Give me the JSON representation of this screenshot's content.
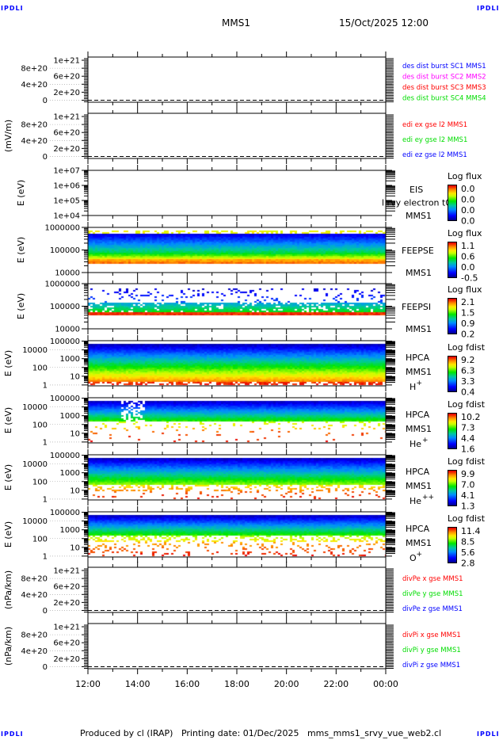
{
  "corners": [
    "IPDLI",
    "IPDLI",
    "IPDLI",
    "IPDLI"
  ],
  "header": {
    "title": "MMS1",
    "date": "15/Oct/2025 12:00"
  },
  "footer": "Produced by cl (IRAP)   Printing date: 01/Dec/2025   mms_mms1_srvy_vue_web2.cl",
  "chart_data": {
    "type": "heatmap",
    "xlabel": "",
    "x_ticks": [
      "12:00",
      "14:00",
      "16:00",
      "18:00",
      "20:00",
      "22:00",
      "00:00"
    ],
    "panels": [
      {
        "id": "des-dist-burst",
        "type": "line",
        "ylabel": "",
        "scale": "linear",
        "ylim": [
          -5e+19,
          1.08e+21
        ],
        "ticks": [
          {
            "v": 1e+21,
            "label": "1e+21"
          },
          {
            "v": 8e+20,
            "label": "8e+20"
          },
          {
            "v": 6e+20,
            "label": "6e+20"
          },
          {
            "v": 4e+20,
            "label": "4e+20"
          },
          {
            "v": 2e+20,
            "label": "2e+20"
          },
          {
            "v": 0,
            "label": "0"
          }
        ],
        "zero_line": true,
        "legend": [
          {
            "text": "des dist burst SC1 MMS1",
            "color": "#0000ff"
          },
          {
            "text": "des dist burst SC2 MMS2",
            "color": "#ff00ff"
          },
          {
            "text": "des dist burst SC3 MMS3",
            "color": "#ff0000"
          },
          {
            "text": "des dist burst SC4 MMS4",
            "color": "#00dd00"
          }
        ]
      },
      {
        "id": "edi-e-gse",
        "type": "line",
        "ylabel": "(mV/m)",
        "scale": "linear",
        "ylim": [
          -5e+19,
          1.08e+21
        ],
        "ticks": [
          {
            "v": 1e+21,
            "label": "1e+21"
          },
          {
            "v": 8e+20,
            "label": "8e+20"
          },
          {
            "v": 6e+20,
            "label": "6e+20"
          },
          {
            "v": 4e+20,
            "label": "4e+20"
          },
          {
            "v": 2e+20,
            "label": "2e+20"
          },
          {
            "v": 0,
            "label": "0"
          }
        ],
        "zero_line": true,
        "legend": [
          {
            "text": "edi ex gse l2 MMS1",
            "color": "#ff0000"
          },
          {
            "text": "edi ey gse l2 MMS1",
            "color": "#00dd00"
          },
          {
            "text": "edi ez gse l2 MMS1",
            "color": "#0000ff"
          }
        ]
      },
      {
        "id": "eis",
        "type": "heatmap",
        "ylabel": "E (eV)",
        "scale": "log",
        "ylim": [
          4,
          7
        ],
        "ticks": [
          {
            "v": 7,
            "label": "1e+07"
          },
          {
            "v": 6,
            "label": "1e+06"
          },
          {
            "v": 5,
            "label": "1e+05"
          },
          {
            "v": 4,
            "label": "1e+04"
          }
        ],
        "instrument": "EIS",
        "overlay": "l rvy electron t0",
        "spacecraft": "MMS1",
        "colorbar": {
          "title": "Log flux",
          "labels": [
            "0.0",
            "0.0",
            "0.0",
            "0.0"
          ]
        }
      },
      {
        "id": "feepse",
        "type": "heatmap",
        "ylabel": "E (eV)",
        "scale": "log",
        "ylim": [
          4,
          6
        ],
        "ticks": [
          {
            "v": 6,
            "label": "1000000"
          },
          {
            "v": 5,
            "label": "100000"
          },
          {
            "v": 4,
            "label": "10000"
          }
        ],
        "instrument": "FEEPSE",
        "spacecraft": "MMS1",
        "colorbar": {
          "title": "Log flux",
          "labels": [
            "1.1",
            "0.6",
            "0.0",
            "-0.5"
          ]
        }
      },
      {
        "id": "feepsi",
        "type": "heatmap",
        "ylabel": "E (eV)",
        "scale": "log",
        "ylim": [
          4,
          6
        ],
        "ticks": [
          {
            "v": 6,
            "label": "1000000"
          },
          {
            "v": 5,
            "label": "100000"
          },
          {
            "v": 4,
            "label": "10000"
          }
        ],
        "instrument": "FEEPSI",
        "spacecraft": "MMS1",
        "colorbar": {
          "title": "Log flux",
          "labels": [
            "2.1",
            "1.5",
            "0.9",
            "0.2"
          ]
        }
      },
      {
        "id": "hpca-h",
        "type": "heatmap",
        "ylabel": "E (eV)",
        "scale": "log",
        "ylim": [
          -0.1,
          5.05
        ],
        "ticks": [
          {
            "v": 5,
            "label": "100000"
          },
          {
            "v": 4,
            "label": "10000"
          },
          {
            "v": 3,
            "label": "1000"
          },
          {
            "v": 2,
            "label": "100"
          },
          {
            "v": 1,
            "label": "10"
          },
          {
            "v": 0,
            "label": "1"
          }
        ],
        "instrument": "HPCA",
        "spacecraft": "MMS1",
        "species": "H",
        "charge": "+",
        "colorbar": {
          "title": "Log fdist",
          "labels": [
            "9.2",
            "6.3",
            "3.3",
            "0.4"
          ]
        }
      },
      {
        "id": "hpca-he1",
        "type": "heatmap",
        "ylabel": "E (eV)",
        "scale": "log",
        "ylim": [
          -0.1,
          5.05
        ],
        "ticks": [
          {
            "v": 5,
            "label": "100000"
          },
          {
            "v": 4,
            "label": "10000"
          },
          {
            "v": 3,
            "label": "1000"
          },
          {
            "v": 2,
            "label": "100"
          },
          {
            "v": 1,
            "label": "10"
          },
          {
            "v": 0,
            "label": "1"
          }
        ],
        "instrument": "HPCA",
        "spacecraft": "MMS1",
        "species": "He",
        "charge": "+",
        "colorbar": {
          "title": "Log fdist",
          "labels": [
            "10.2",
            "7.3",
            "4.4",
            "1.6"
          ]
        }
      },
      {
        "id": "hpca-he2",
        "type": "heatmap",
        "ylabel": "E (eV)",
        "scale": "log",
        "ylim": [
          -0.1,
          5.05
        ],
        "ticks": [
          {
            "v": 5,
            "label": "100000"
          },
          {
            "v": 4,
            "label": "10000"
          },
          {
            "v": 3,
            "label": "1000"
          },
          {
            "v": 2,
            "label": "100"
          },
          {
            "v": 1,
            "label": "10"
          },
          {
            "v": 0,
            "label": "1"
          }
        ],
        "instrument": "HPCA",
        "spacecraft": "MMS1",
        "species": "He",
        "charge": "++",
        "colorbar": {
          "title": "Log fdist",
          "labels": [
            "9.9",
            "7.0",
            "4.1",
            "1.3"
          ]
        }
      },
      {
        "id": "hpca-o",
        "type": "heatmap",
        "ylabel": "E (eV)",
        "scale": "log",
        "ylim": [
          -0.1,
          5.05
        ],
        "ticks": [
          {
            "v": 5,
            "label": "100000"
          },
          {
            "v": 4,
            "label": "10000"
          },
          {
            "v": 3,
            "label": "1000"
          },
          {
            "v": 2,
            "label": "100"
          },
          {
            "v": 1,
            "label": "10"
          },
          {
            "v": 0,
            "label": "1"
          }
        ],
        "instrument": "HPCA",
        "spacecraft": "MMS1",
        "species": "O",
        "charge": "+",
        "colorbar": {
          "title": "Log fdist",
          "labels": [
            "11.4",
            "8.5",
            "5.6",
            "2.8"
          ]
        }
      },
      {
        "id": "divpe",
        "type": "line",
        "ylabel": "(nPa/km)",
        "scale": "linear",
        "ylim": [
          -5e+19,
          1.08e+21
        ],
        "ticks": [
          {
            "v": 1e+21,
            "label": "1e+21"
          },
          {
            "v": 8e+20,
            "label": "8e+20"
          },
          {
            "v": 6e+20,
            "label": "6e+20"
          },
          {
            "v": 4e+20,
            "label": "4e+20"
          },
          {
            "v": 2e+20,
            "label": "2e+20"
          },
          {
            "v": 0,
            "label": "0"
          }
        ],
        "zero_line": true,
        "legend": [
          {
            "text": "divPe x gse MMS1",
            "color": "#ff0000"
          },
          {
            "text": "divPe y gse MMS1",
            "color": "#00dd00"
          },
          {
            "text": "divPe z gse MMS1",
            "color": "#0000ff"
          }
        ]
      },
      {
        "id": "divpi",
        "type": "line",
        "ylabel": "(nPa/km)",
        "scale": "linear",
        "ylim": [
          -5e+19,
          1.08e+21
        ],
        "ticks": [
          {
            "v": 1e+21,
            "label": "1e+21"
          },
          {
            "v": 8e+20,
            "label": "8e+20"
          },
          {
            "v": 6e+20,
            "label": "6e+20"
          },
          {
            "v": 4e+20,
            "label": "4e+20"
          },
          {
            "v": 2e+20,
            "label": "2e+20"
          },
          {
            "v": 0,
            "label": "0"
          }
        ],
        "zero_line": true,
        "legend": [
          {
            "text": "divPi x gse MMS1",
            "color": "#ff0000"
          },
          {
            "text": "divPi y gse MMS1",
            "color": "#00dd00"
          },
          {
            "text": "divPi z gse MMS1",
            "color": "#0000ff"
          }
        ]
      }
    ]
  }
}
